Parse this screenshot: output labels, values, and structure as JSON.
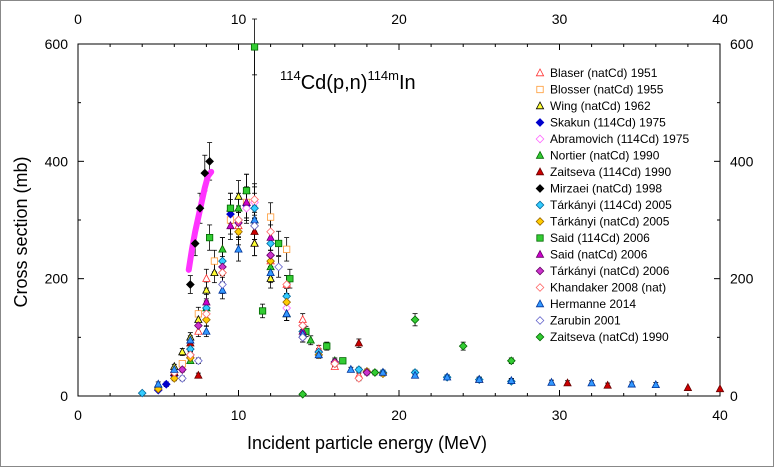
{
  "chart_data": {
    "type": "scatter",
    "title": "",
    "annotation": {
      "base": "Cd(p,n)",
      "sup1": "114",
      "sup2": "114m",
      "product": "In"
    },
    "xlabel": "Incident particle energy (MeV)",
    "ylabel": "Cross section (mb)",
    "xlim": [
      0,
      40
    ],
    "ylim": [
      0,
      600
    ],
    "x_ticks": [
      "0",
      "10",
      "20",
      "30",
      "40"
    ],
    "y_ticks": [
      "0",
      "200",
      "400",
      "600"
    ],
    "grid": false,
    "legend_position": "right",
    "colors": {
      "red": "#ff3030",
      "orange": "#ff9933",
      "yellow": "#ffff33",
      "blue": "#0000cc",
      "pink": "#ff66ff",
      "green": "#33cc33",
      "darkred": "#cc0000",
      "black": "#000000",
      "cyan": "#33ccff",
      "gold": "#ffcc00",
      "dgreen": "#00aa00",
      "magenta": "#cc00cc",
      "violet": "#cc33cc",
      "salmon": "#ff9999",
      "skyblue": "#3399ff",
      "lilac": "#9999ff",
      "lime": "#33cc33"
    },
    "series": [
      {
        "name": "Blaser (natCd) 1951",
        "marker": "triangle",
        "fill": "#ffffff",
        "stroke": "#ff3030",
        "points": [
          [
            7.0,
            70
          ],
          [
            7.5,
            110
          ],
          [
            8.0,
            200
          ],
          [
            9.0,
            250
          ],
          [
            10.0,
            290
          ],
          [
            11.0,
            260
          ],
          [
            12.0,
            230
          ],
          [
            13.0,
            190
          ],
          [
            14.0,
            130
          ],
          [
            15.0,
            80
          ],
          [
            16.0,
            50
          ],
          [
            17.5,
            35
          ]
        ]
      },
      {
        "name": "Blosser (natCd) 1955",
        "marker": "square",
        "fill": "#ffffff",
        "stroke": "#ff9933",
        "points": [
          [
            6.5,
            55
          ],
          [
            7.5,
            140
          ],
          [
            8.5,
            230
          ],
          [
            9.5,
            300
          ],
          [
            10.5,
            330
          ],
          [
            12.0,
            305
          ],
          [
            13.0,
            250
          ]
        ]
      },
      {
        "name": "Wing (natCd) 1962",
        "marker": "triangle",
        "fill": "#ffff33",
        "stroke": "#000000",
        "points": [
          [
            6.0,
            50
          ],
          [
            6.5,
            75
          ],
          [
            7.0,
            100
          ],
          [
            7.5,
            130
          ],
          [
            8.0,
            180
          ],
          [
            8.5,
            210
          ],
          [
            9.5,
            320
          ],
          [
            10.0,
            340
          ],
          [
            10.5,
            350
          ],
          [
            11.0,
            260
          ],
          [
            12.0,
            200
          ],
          [
            13.0,
            140
          ]
        ]
      },
      {
        "name": "Skakun (114Cd) 1975",
        "marker": "diamond",
        "fill": "#0000cc",
        "stroke": "#0000cc",
        "points": [
          [
            5.0,
            10
          ],
          [
            5.5,
            20
          ],
          [
            6.0,
            35
          ],
          [
            7.0,
            70
          ],
          [
            9.5,
            310
          ],
          [
            10.5,
            325
          ]
        ]
      },
      {
        "name": "Abramovich (114Cd) 1975",
        "marker": "diamond",
        "fill": "#ffffff",
        "stroke": "#ff66ff",
        "points": [
          [
            10.5,
            320
          ],
          [
            11.0,
            330
          ],
          [
            12.0,
            240
          ],
          [
            13.0,
            150
          ],
          [
            14.0,
            100
          ],
          [
            15.0,
            75
          ],
          [
            16.0,
            55
          ]
        ]
      },
      {
        "name": "Nortier (natCd) 1990",
        "marker": "triangle",
        "fill": "#33cc33",
        "stroke": "#006600",
        "points": [
          [
            7.0,
            60
          ],
          [
            8.0,
            150
          ],
          [
            9.0,
            250
          ],
          [
            10.0,
            320
          ],
          [
            11.0,
            300
          ],
          [
            12.0,
            220
          ],
          [
            13.0,
            140
          ],
          [
            14.5,
            95
          ],
          [
            16.0,
            60
          ]
        ]
      },
      {
        "name": "Zaitseva (114Cd) 1990",
        "marker": "triangle",
        "fill": "#cc0000",
        "stroke": "#660000",
        "points": [
          [
            6.0,
            40
          ],
          [
            7.0,
            90
          ],
          [
            7.5,
            35
          ],
          [
            11.0,
            280
          ],
          [
            17.5,
            90
          ],
          [
            25.0,
            28
          ],
          [
            30.5,
            22
          ],
          [
            33.0,
            18
          ],
          [
            38.0,
            14
          ],
          [
            40.0,
            12
          ]
        ]
      },
      {
        "name": "Mirzaei (natCd) 1998",
        "marker": "diamond",
        "fill": "#000000",
        "stroke": "#000000",
        "points": [
          [
            7.0,
            190
          ],
          [
            7.3,
            260
          ],
          [
            7.6,
            320
          ],
          [
            7.9,
            380
          ],
          [
            8.2,
            400
          ]
        ]
      },
      {
        "name": "Tárkányi (114Cd) 2005",
        "marker": "diamond",
        "fill": "#33ccff",
        "stroke": "#006699",
        "points": [
          [
            4.0,
            5
          ],
          [
            5.0,
            15
          ],
          [
            6.0,
            40
          ],
          [
            7.0,
            80
          ],
          [
            8.0,
            150
          ],
          [
            9.0,
            230
          ],
          [
            10.0,
            300
          ],
          [
            11.0,
            320
          ],
          [
            12.0,
            260
          ],
          [
            13.0,
            170
          ],
          [
            14.0,
            110
          ],
          [
            15.0,
            75
          ],
          [
            16.0,
            55
          ],
          [
            17.5,
            45
          ],
          [
            19.0,
            40
          ],
          [
            21.0,
            40
          ],
          [
            23.0,
            32
          ],
          [
            25.0,
            28
          ],
          [
            27.0,
            25
          ]
        ]
      },
      {
        "name": "Tárkányi (natCd) 2005",
        "marker": "diamond",
        "fill": "#ffcc00",
        "stroke": "#996600",
        "points": [
          [
            5.0,
            12
          ],
          [
            6.0,
            30
          ],
          [
            7.0,
            65
          ],
          [
            8.0,
            130
          ],
          [
            9.0,
            210
          ],
          [
            10.0,
            280
          ],
          [
            11.0,
            290
          ],
          [
            12.0,
            230
          ],
          [
            13.0,
            160
          ],
          [
            14.0,
            100
          ],
          [
            15.0,
            70
          ],
          [
            16.0,
            55
          ],
          [
            18.0,
            42
          ],
          [
            19.0,
            38
          ]
        ]
      },
      {
        "name": "Said (114Cd) 2006",
        "marker": "square",
        "fill": "#33cc33",
        "stroke": "#006600",
        "points": [
          [
            8.2,
            270
          ],
          [
            9.5,
            320
          ],
          [
            10.5,
            350
          ],
          [
            11.0,
            595
          ],
          [
            11.5,
            145
          ],
          [
            12.5,
            260
          ],
          [
            13.2,
            200
          ],
          [
            14.2,
            110
          ],
          [
            15.5,
            85
          ],
          [
            16.5,
            60
          ]
        ]
      },
      {
        "name": "Said (natCd) 2006",
        "marker": "triangle",
        "fill": "#cc00cc",
        "stroke": "#660066",
        "points": [
          [
            8.0,
            160
          ],
          [
            9.5,
            290
          ],
          [
            10.5,
            330
          ],
          [
            12.0,
            270
          ],
          [
            14.0,
            110
          ]
        ]
      },
      {
        "name": "Tárkányi (natCd) 2006",
        "marker": "diamond",
        "fill": "#cc33cc",
        "stroke": "#660066",
        "points": [
          [
            6.5,
            45
          ],
          [
            7.5,
            120
          ],
          [
            9.0,
            220
          ],
          [
            10.0,
            295
          ],
          [
            12.0,
            240
          ],
          [
            14.0,
            120
          ],
          [
            16.0,
            58
          ],
          [
            18.0,
            40
          ]
        ]
      },
      {
        "name": "Khandaker 2008 (nat)",
        "marker": "diamond",
        "fill": "#ffffff",
        "stroke": "#ff6666",
        "points": [
          [
            6.0,
            40
          ],
          [
            7.0,
            70
          ],
          [
            8.0,
            140
          ],
          [
            9.0,
            210
          ],
          [
            10.0,
            300
          ],
          [
            11.0,
            335
          ],
          [
            12.0,
            280
          ],
          [
            13.0,
            190
          ],
          [
            14.0,
            120
          ],
          [
            16.0,
            55
          ],
          [
            17.5,
            30
          ]
        ]
      },
      {
        "name": "Hermanne 2014",
        "marker": "triangle",
        "fill": "#3399ff",
        "stroke": "#003399",
        "points": [
          [
            5.0,
            20
          ],
          [
            6.0,
            45
          ],
          [
            7.0,
            95
          ],
          [
            8.0,
            110
          ],
          [
            9.0,
            180
          ],
          [
            10.0,
            250
          ],
          [
            11.0,
            300
          ],
          [
            12.0,
            210
          ],
          [
            13.0,
            140
          ],
          [
            14.0,
            105
          ],
          [
            15.0,
            70
          ],
          [
            17.0,
            45
          ],
          [
            19.0,
            40
          ],
          [
            21.0,
            35
          ],
          [
            23.0,
            32
          ],
          [
            25.0,
            28
          ],
          [
            27.0,
            26
          ],
          [
            29.5,
            23
          ],
          [
            32.0,
            22
          ],
          [
            34.5,
            20
          ],
          [
            36.0,
            19
          ]
        ]
      },
      {
        "name": "Zarubin 2001",
        "marker": "diamond",
        "fill": "#ffffff",
        "stroke": "#6666cc",
        "points": [
          [
            6.5,
            30
          ],
          [
            7.5,
            60
          ],
          [
            9.0,
            190
          ],
          [
            11.0,
            290
          ],
          [
            12.5,
            220
          ],
          [
            14.0,
            100
          ]
        ]
      },
      {
        "name": "Zaitseva (natCd) 1990",
        "marker": "diamond",
        "fill": "#33cc33",
        "stroke": "#006600",
        "points": [
          [
            14.0,
            3
          ],
          [
            18.5,
            40
          ],
          [
            21.0,
            130
          ],
          [
            24.0,
            85
          ],
          [
            27.0,
            60
          ]
        ]
      }
    ],
    "mirzaei_curve": [
      [
        6.9,
        215
      ],
      [
        7.1,
        250
      ],
      [
        7.3,
        280
      ],
      [
        7.5,
        305
      ],
      [
        7.7,
        330
      ],
      [
        7.9,
        355
      ],
      [
        8.1,
        375
      ],
      [
        8.3,
        382
      ]
    ]
  }
}
